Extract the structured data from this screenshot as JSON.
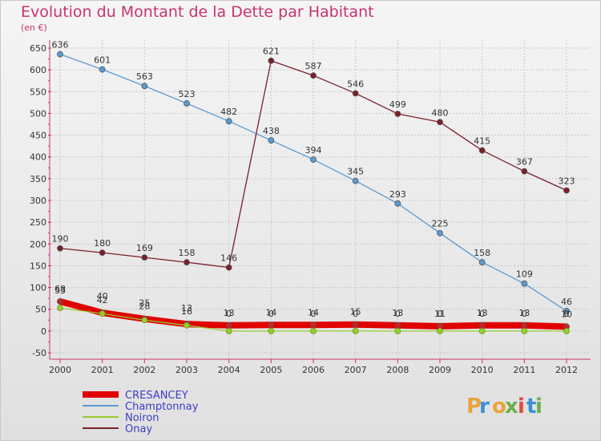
{
  "chart_data": {
    "type": "line",
    "title": "Evolution du Montant de la Dette par Habitant",
    "subtitle": "(en €)",
    "ylim": [
      -50,
      650
    ],
    "yticks": [
      -50,
      0,
      50,
      100,
      150,
      200,
      250,
      300,
      350,
      400,
      450,
      500,
      550,
      600,
      650
    ],
    "categories": [
      "2000",
      "2001",
      "2002",
      "2003",
      "2004",
      "2005",
      "2006",
      "2007",
      "2008",
      "2009",
      "2010",
      "2011",
      "2012"
    ],
    "grid": true,
    "legend_position": "bottom-left",
    "series": [
      {
        "name": "CRESANCEY",
        "color": "#e00000",
        "values": [
          68,
          42,
          28,
          16,
          13,
          14,
          14,
          15,
          13,
          11,
          13,
          13,
          10
        ]
      },
      {
        "name": "Champtonnay",
        "color": "#5a9bd4",
        "values": [
          636,
          601,
          563,
          523,
          482,
          438,
          394,
          345,
          293,
          225,
          158,
          109,
          46
        ]
      },
      {
        "name": "Noiron",
        "color": "#99cc33",
        "values": [
          53,
          40,
          25,
          13,
          0,
          0,
          0,
          0,
          0,
          0,
          0,
          0,
          0
        ]
      },
      {
        "name": "Onay",
        "color": "#7a1f2b",
        "values": [
          190,
          180,
          169,
          158,
          146,
          621,
          587,
          546,
          499,
          480,
          415,
          367,
          323
        ]
      }
    ]
  },
  "logo": {
    "text": "Proxiti"
  }
}
